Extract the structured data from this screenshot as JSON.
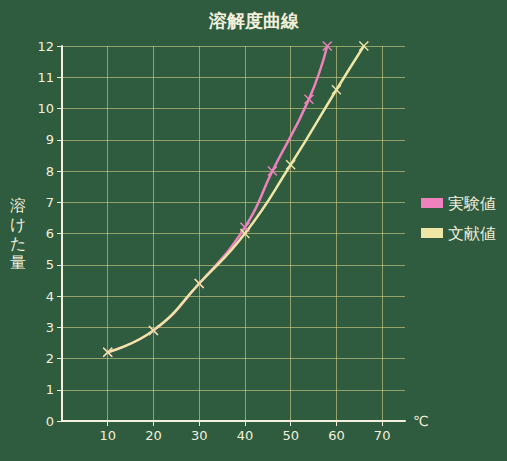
{
  "chart_data": {
    "type": "line",
    "title": "溶解度曲線",
    "y_label": "溶けた量",
    "x_label": "℃",
    "xlim": [
      0,
      75
    ],
    "xticks": [
      10,
      20,
      30,
      40,
      50,
      60,
      70
    ],
    "ylim": [
      0,
      12
    ],
    "yticks": [
      0,
      1,
      2,
      3,
      4,
      5,
      6,
      7,
      8,
      9,
      10,
      11,
      12
    ],
    "grid": true,
    "legend": "right",
    "series": [
      {
        "name": "実験値",
        "color": "#ee82bd",
        "marker": "cross",
        "line_style": "solid",
        "x": [
          10,
          20,
          30,
          40,
          46,
          54,
          58
        ],
        "values": [
          2.2,
          2.9,
          4.4,
          6.2,
          8.0,
          10.3,
          12.0
        ]
      },
      {
        "name": "文献値",
        "color": "#efe6a6",
        "marker": "cross",
        "line_style": "solid",
        "x": [
          10,
          20,
          30,
          40,
          50,
          60,
          66
        ],
        "values": [
          2.2,
          2.9,
          4.4,
          6.0,
          8.2,
          10.6,
          12.0
        ]
      }
    ]
  }
}
